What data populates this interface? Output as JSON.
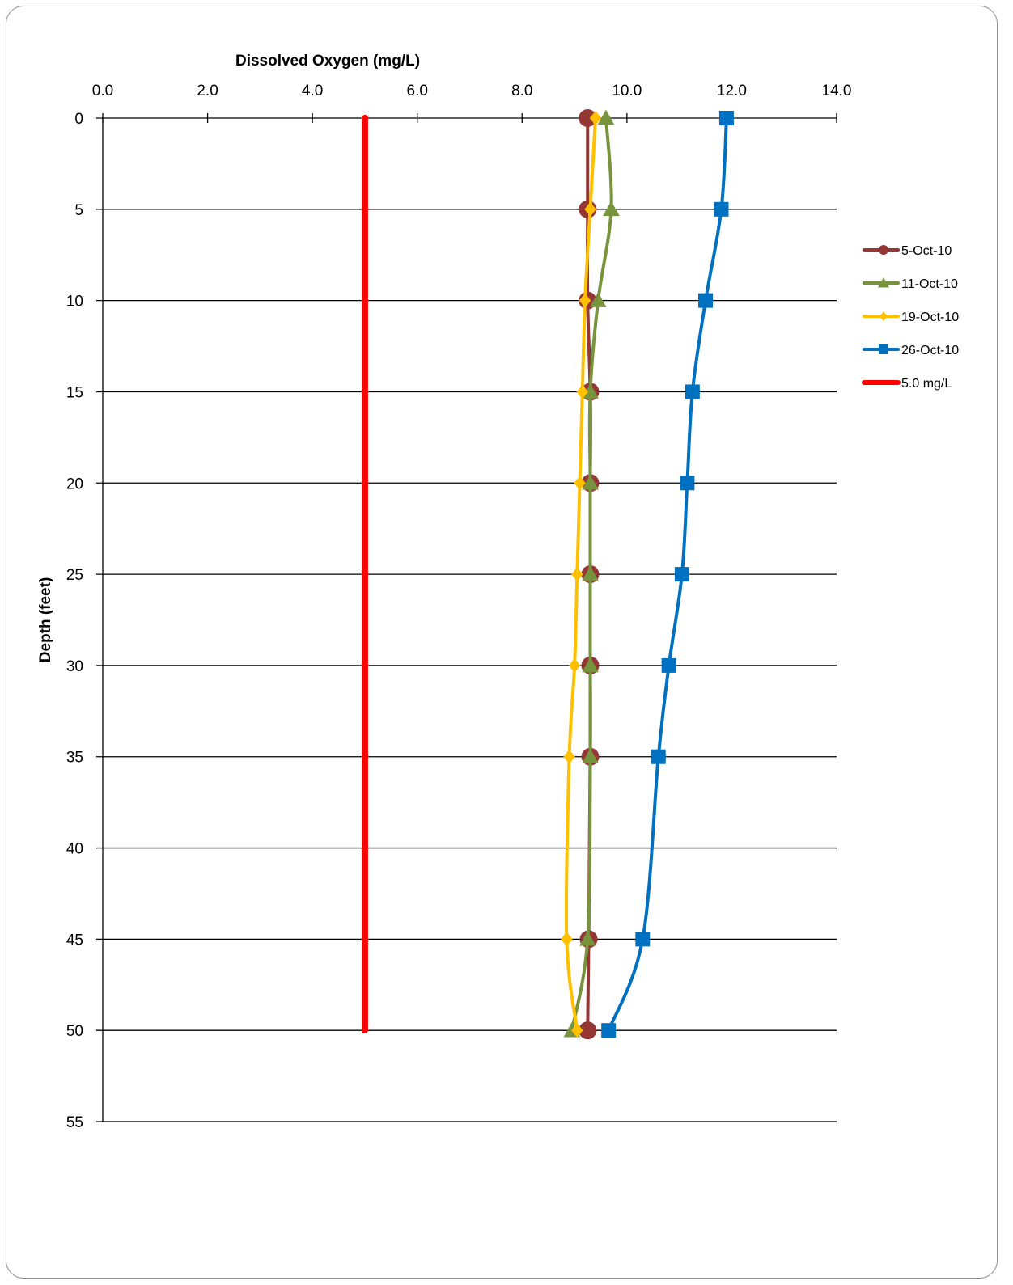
{
  "chart_data": {
    "type": "line",
    "title": "",
    "xlabel": "Dissolved Oxygen (mg/L)",
    "ylabel": "Depth (feet)",
    "xlim": [
      0,
      14
    ],
    "ylim": [
      0,
      55
    ],
    "x_axis_position": "top",
    "y_axis_inverted": true,
    "x_ticks": [
      "0.0",
      "2.0",
      "4.0",
      "6.0",
      "8.0",
      "10.0",
      "12.0",
      "14.0"
    ],
    "y_ticks": [
      "0",
      "5",
      "10",
      "15",
      "20",
      "25",
      "30",
      "35",
      "40",
      "45",
      "50",
      "55"
    ],
    "grid": "horizontal major gridlines",
    "legend_position": "right",
    "series": [
      {
        "name": "5-Oct-10",
        "color": "#943634",
        "marker": "circle",
        "points": [
          [
            9.25,
            0
          ],
          [
            9.25,
            5
          ],
          [
            9.25,
            10
          ],
          [
            9.3,
            15
          ],
          [
            9.3,
            20
          ],
          [
            9.3,
            25
          ],
          [
            9.3,
            30
          ],
          [
            9.3,
            35
          ],
          [
            9.27,
            45
          ],
          [
            9.25,
            50
          ]
        ]
      },
      {
        "name": "11-Oct-10",
        "color": "#77933c",
        "marker": "triangle",
        "points": [
          [
            9.6,
            0
          ],
          [
            9.7,
            5
          ],
          [
            9.45,
            10
          ],
          [
            9.3,
            15
          ],
          [
            9.3,
            20
          ],
          [
            9.3,
            25
          ],
          [
            9.3,
            30
          ],
          [
            9.3,
            35
          ],
          [
            9.25,
            45
          ],
          [
            8.95,
            50
          ]
        ]
      },
      {
        "name": "19-Oct-10",
        "color": "#ffc000",
        "marker": "diamond",
        "points": [
          [
            9.4,
            0
          ],
          [
            9.3,
            5
          ],
          [
            9.2,
            10
          ],
          [
            9.15,
            15
          ],
          [
            9.1,
            20
          ],
          [
            9.05,
            25
          ],
          [
            9.0,
            30
          ],
          [
            8.9,
            35
          ],
          [
            8.85,
            45
          ],
          [
            9.05,
            50
          ]
        ]
      },
      {
        "name": "26-Oct-10",
        "color": "#0070c0",
        "marker": "square",
        "points": [
          [
            11.9,
            0
          ],
          [
            11.8,
            5
          ],
          [
            11.5,
            10
          ],
          [
            11.25,
            15
          ],
          [
            11.15,
            20
          ],
          [
            11.05,
            25
          ],
          [
            10.8,
            30
          ],
          [
            10.6,
            35
          ],
          [
            10.3,
            45
          ],
          [
            9.65,
            50
          ]
        ]
      },
      {
        "name": "5.0 mg/L",
        "color": "#ff0000",
        "marker": "none",
        "points": [
          [
            5.0,
            0
          ],
          [
            5.0,
            50
          ]
        ]
      }
    ]
  }
}
